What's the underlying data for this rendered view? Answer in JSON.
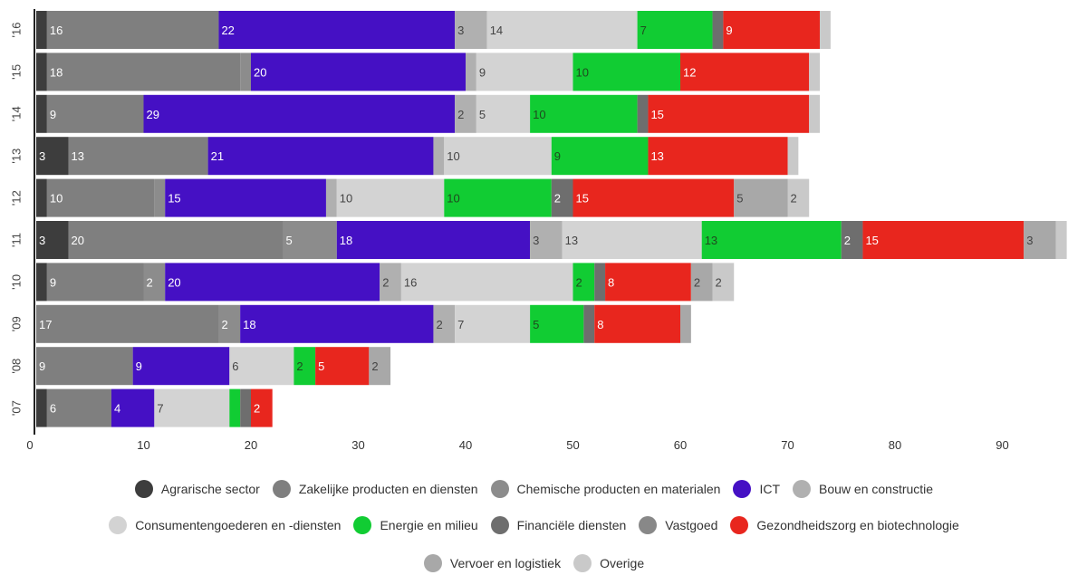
{
  "chart_data": {
    "type": "bar",
    "orientation": "horizontal",
    "stacked": true,
    "title": "",
    "xlabel": "",
    "ylabel": "",
    "xlim": [
      0,
      97
    ],
    "x_ticks": [
      0,
      10,
      20,
      30,
      40,
      50,
      60,
      70,
      80,
      90
    ],
    "grid": false,
    "legend_position": "bottom",
    "categories": [
      "'16",
      "'15",
      "'14",
      "'13",
      "'12",
      "'11",
      "'10",
      "'09",
      "'08",
      "'07"
    ],
    "series": [
      {
        "name": "Agrarische sector",
        "color": "#3d3d3d",
        "values": [
          1,
          1,
          1,
          3,
          1,
          3,
          1,
          0,
          0,
          1
        ]
      },
      {
        "name": "Zakelijke producten en diensten",
        "color": "#7f7f7f",
        "values": [
          16,
          18,
          9,
          13,
          10,
          20,
          9,
          17,
          9,
          6
        ]
      },
      {
        "name": "Chemische producten en materialen",
        "color": "#8c8c8c",
        "values": [
          0,
          1,
          0,
          0,
          1,
          5,
          2,
          2,
          0,
          0
        ]
      },
      {
        "name": "ICT",
        "color": "#4510c4",
        "values": [
          22,
          20,
          29,
          21,
          15,
          18,
          20,
          18,
          9,
          4
        ]
      },
      {
        "name": "Bouw en constructie",
        "color": "#b0b0b0",
        "values": [
          3,
          1,
          2,
          1,
          1,
          3,
          2,
          2,
          0,
          0
        ]
      },
      {
        "name": "Consumentengoederen en -diensten",
        "color": "#d3d3d3",
        "values": [
          14,
          9,
          5,
          10,
          10,
          13,
          16,
          7,
          6,
          7
        ]
      },
      {
        "name": "Energie en milieu",
        "color": "#11cc33",
        "values": [
          7,
          10,
          10,
          9,
          10,
          13,
          2,
          5,
          2,
          1
        ]
      },
      {
        "name": "Financiële diensten",
        "color": "#6e6e6e",
        "values": [
          1,
          0,
          1,
          0,
          2,
          2,
          1,
          1,
          0,
          1
        ]
      },
      {
        "name": "Vastgoed",
        "color": "#888888",
        "values": [
          0,
          0,
          0,
          0,
          0,
          0,
          0,
          0,
          0,
          0
        ]
      },
      {
        "name": "Gezondheidszorg en biotechnologie",
        "color": "#e8261e",
        "values": [
          9,
          12,
          15,
          13,
          15,
          15,
          8,
          8,
          5,
          2
        ]
      },
      {
        "name": "Vervoer en logistiek",
        "color": "#a8a8a8",
        "values": [
          0,
          0,
          0,
          0,
          5,
          3,
          2,
          1,
          2,
          0
        ]
      },
      {
        "name": "Overige",
        "color": "#c9c9c9",
        "values": [
          1,
          1,
          1,
          1,
          2,
          1,
          2,
          0,
          0,
          0
        ]
      }
    ]
  },
  "legend_rows": [
    [
      0,
      1,
      2,
      3,
      4
    ],
    [
      5,
      6,
      7,
      8,
      9
    ],
    [
      10,
      11
    ]
  ]
}
